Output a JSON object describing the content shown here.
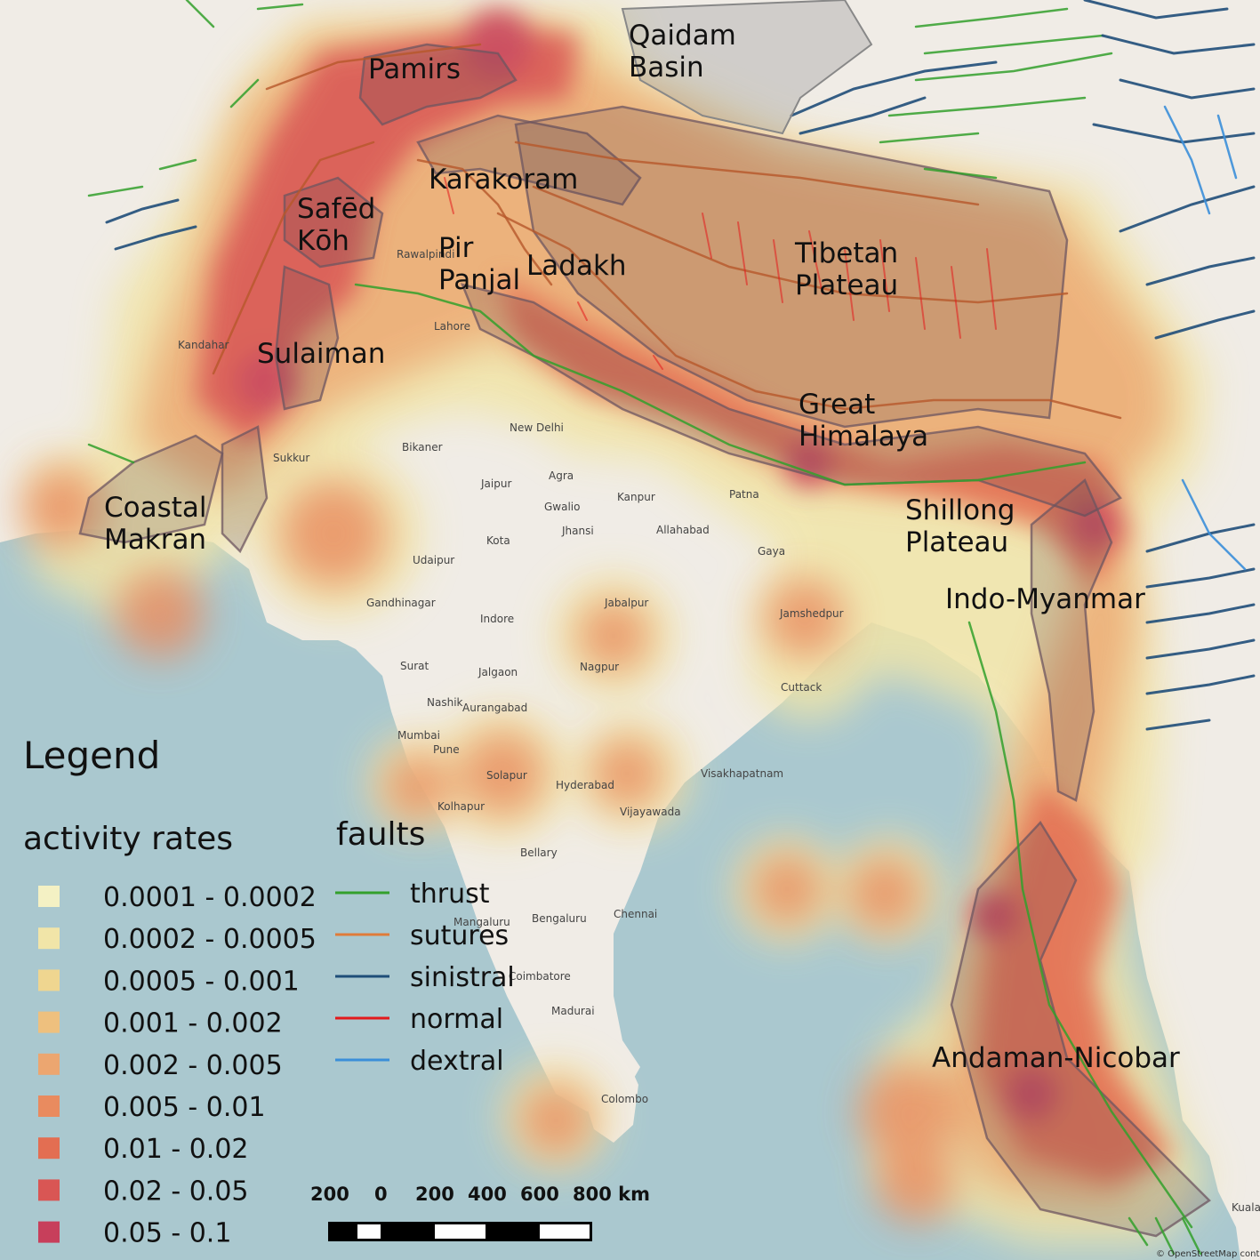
{
  "regions": [
    {
      "id": "pamirs",
      "lines": [
        "Pamirs"
      ]
    },
    {
      "id": "qaidam",
      "lines": [
        "Qaidam",
        "Basin"
      ]
    },
    {
      "id": "karakoram",
      "lines": [
        "Karakoram"
      ]
    },
    {
      "id": "safed-koh",
      "lines": [
        "Safēd",
        "Kōh"
      ]
    },
    {
      "id": "pir-panjal",
      "lines": [
        "Pir",
        "Panjal"
      ]
    },
    {
      "id": "ladakh",
      "lines": [
        "Ladakh"
      ]
    },
    {
      "id": "tibetan-plateau",
      "lines": [
        "Tibetan",
        "Plateau"
      ]
    },
    {
      "id": "sulaiman",
      "lines": [
        "Sulaiman"
      ]
    },
    {
      "id": "great-himalaya",
      "lines": [
        "Great",
        "Himalaya"
      ]
    },
    {
      "id": "coastal-makran",
      "lines": [
        "Coastal",
        "Makran"
      ]
    },
    {
      "id": "shillong-plateau",
      "lines": [
        "Shillong",
        "Plateau"
      ]
    },
    {
      "id": "indo-myanmar",
      "lines": [
        "Indo-Myanmar"
      ]
    },
    {
      "id": "andaman-nicobar",
      "lines": [
        "Andaman-Nicobar"
      ]
    }
  ],
  "cities": [
    "New Delhi",
    "Lahore",
    "Bikaner",
    "Sukkur",
    "Jaipur",
    "Agra",
    "Gwalio",
    "Jhansi",
    "Kota",
    "Udaipur",
    "Gandhinagar",
    "Indore",
    "Surat",
    "Jalgaon",
    "Nashik",
    "Aurangabad",
    "Mumbai",
    "Pune",
    "Solapur",
    "Kolhapur",
    "Hyderabad",
    "Vijayawada",
    "Bellary",
    "Bengaluru",
    "Chennai",
    "Mangaluru",
    "Madurai",
    "Coimbatore",
    "Colombo",
    "Nagpur",
    "Jabalpur",
    "Kanpur",
    "Allahabad",
    "Patna",
    "Jamshedpur",
    "Cuttack",
    "Visakhapatnam",
    "Gaya",
    "Kandahar",
    "Rawalpindi",
    "Kuala Lu"
  ],
  "legend": {
    "title": "Legend",
    "activity_title": "activity rates",
    "activity_items": [
      {
        "label": "0.0001 - 0.0002",
        "color": "#f4f1c4"
      },
      {
        "label": "0.0002 - 0.0005",
        "color": "#f1e5a8"
      },
      {
        "label": "0.0005 - 0.001",
        "color": "#efd690"
      },
      {
        "label": "0.001 - 0.002",
        "color": "#eec07e"
      },
      {
        "label": "0.002 - 0.005",
        "color": "#eca670"
      },
      {
        "label": "0.005 - 0.01",
        "color": "#e98b5f"
      },
      {
        "label": "0.01 - 0.02",
        "color": "#e36e52"
      },
      {
        "label": "0.02 - 0.05",
        "color": "#d95654"
      },
      {
        "label": "0.05 - 0.1",
        "color": "#c73f5b"
      }
    ],
    "faults_title": "faults",
    "fault_items": [
      {
        "label": "thrust",
        "color": "#33a02c"
      },
      {
        "label": "sutures",
        "color": "#e07b39"
      },
      {
        "label": "sinistral",
        "color": "#1f4e79"
      },
      {
        "label": "normal",
        "color": "#e31a1c"
      },
      {
        "label": "dextral",
        "color": "#3b8fd9"
      }
    ]
  },
  "scale": {
    "ticks": [
      "200",
      "0",
      "200",
      "400",
      "600",
      "800 km"
    ]
  },
  "attribution": "© OpenStreetMap contributors"
}
